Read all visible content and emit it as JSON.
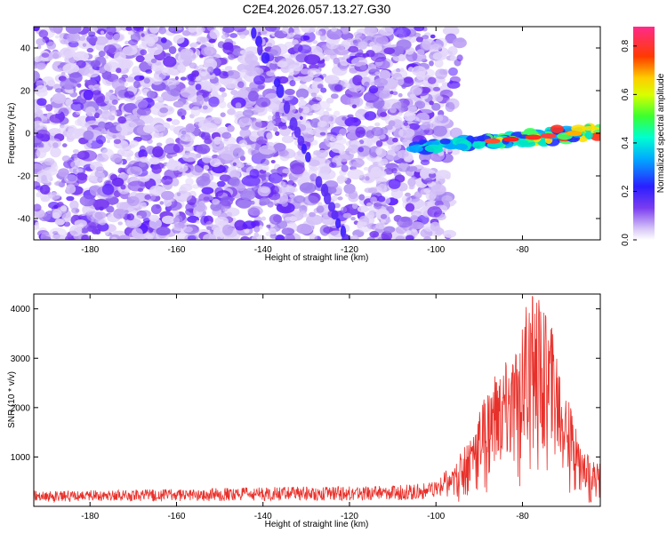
{
  "title": "C2E4.2026.057.13.27.G30",
  "colors": {
    "spectrogram_base": "#7a3cf0",
    "snr_line": "#e8302a",
    "axis": "#000000"
  },
  "chart_data": [
    {
      "type": "heatmap",
      "xlabel": "Height of straight line (km)",
      "ylabel": "Frequency (Hz)",
      "xlim": [
        -193,
        -62
      ],
      "ylim": [
        -50,
        50
      ],
      "xticks": [
        -180,
        -160,
        -140,
        -120,
        -100,
        -80
      ],
      "yticks": [
        -40,
        -20,
        0,
        20,
        40
      ],
      "colorbar": {
        "label": "Normalized spectral amplitude",
        "range": [
          0,
          0.88
        ],
        "ticks": [
          0.0,
          0.2,
          0.4,
          0.6,
          0.8
        ]
      },
      "features": [
        {
          "name": "noise-field",
          "x_range": [
            -193,
            -97
          ],
          "y_range": [
            -50,
            50
          ],
          "amplitude": 0.1
        },
        {
          "name": "diagonal-streak",
          "from": [
            -142,
            47
          ],
          "to": [
            -121,
            -50
          ],
          "amplitude": 0.2
        },
        {
          "name": "tone-signal",
          "from": [
            -105,
            -7
          ],
          "to": [
            -62,
            1
          ],
          "peak_amplitude": 0.88
        }
      ]
    },
    {
      "type": "line",
      "xlabel": "Height of straight line (km)",
      "ylabel": "SNR (10 * v/v)",
      "xlim": [
        -193,
        -62
      ],
      "ylim": [
        0,
        4300
      ],
      "xticks": [
        -180,
        -160,
        -140,
        -120,
        -100,
        -80
      ],
      "yticks": [
        1000,
        2000,
        3000,
        4000
      ],
      "series": [
        {
          "name": "SNR",
          "x": [
            -193,
            -180,
            -170,
            -160,
            -150,
            -140,
            -130,
            -120,
            -110,
            -100,
            -96,
            -92,
            -88,
            -84,
            -82,
            -80,
            -78,
            -76,
            -74,
            -72,
            -70,
            -68,
            -66,
            -64,
            -62
          ],
          "values": [
            200,
            210,
            220,
            230,
            240,
            250,
            260,
            260,
            270,
            320,
            600,
            1200,
            1900,
            2300,
            2400,
            2900,
            3500,
            3300,
            3000,
            2600,
            1900,
            1300,
            900,
            750,
            700
          ]
        }
      ]
    }
  ]
}
